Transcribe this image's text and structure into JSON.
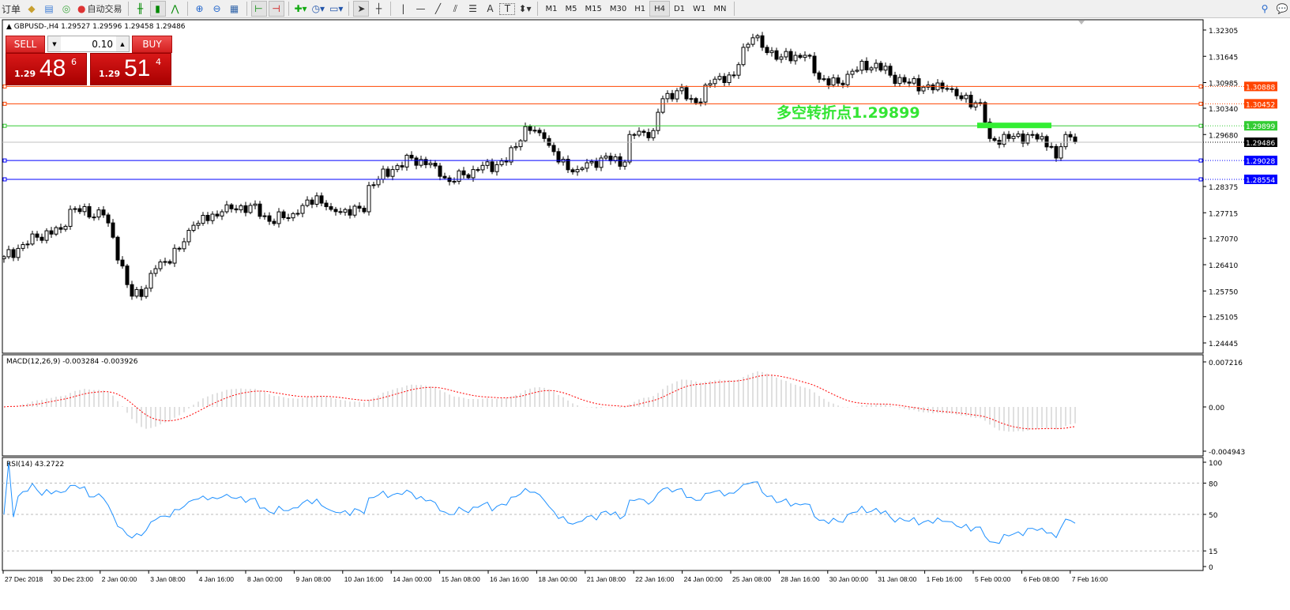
{
  "toolbar": {
    "left_label": "订单",
    "auto_trade": "自动交易",
    "icons": [
      "gold-bars-icon",
      "data-window-icon",
      "signal-icon",
      "auto-trading-icon",
      "bar-chart-icon",
      "candlestick-icon",
      "line-chart-icon",
      "zoom-in-icon",
      "zoom-out-icon",
      "tile-windows-icon",
      "chart-shift-icon",
      "autoscroll-icon",
      "indicators-icon",
      "periods-icon",
      "templates-icon",
      "cursor-icon",
      "crosshair-icon",
      "vertical-line-icon",
      "horizontal-line-icon",
      "trendline-icon",
      "fibonacci-channel-icon",
      "fibonacci-icon",
      "text-icon",
      "text-label-icon",
      "arrows-icon"
    ],
    "draw_labels": {
      "text": "A",
      "label": "T"
    },
    "timeframes": [
      "M1",
      "M5",
      "M15",
      "M30",
      "H1",
      "H4",
      "D1",
      "W1",
      "MN"
    ],
    "active_timeframe": "H4",
    "right_icons": [
      "search-icon",
      "chat-icon"
    ]
  },
  "chart_header": "GBPUSD-,H4  1.29527 1.29596 1.29458 1.29486",
  "trade_panel": {
    "sell": "SELL",
    "buy": "BUY",
    "lot": "0.10",
    "sell_small": "1.29",
    "sell_big": "48",
    "sell_pip": "6",
    "buy_small": "1.29",
    "buy_big": "51",
    "buy_pip": "4"
  },
  "annotation": "多空转折点1.29899",
  "colors": {
    "resistance": "#ff4500",
    "pivot": "#33cc33",
    "support": "#0000ff",
    "bid": "#c0c0c0",
    "annotation": "#33e533",
    "macd_signal": "#ff0000",
    "rsi": "#1e90ff"
  },
  "chart_data": {
    "type": "candlestick",
    "symbol": "GBPUSD-",
    "timeframe": "H4",
    "price_axis_ticks": [
      "1.32305",
      "1.31645",
      "1.30985",
      "1.30340",
      "1.29680",
      "1.28375",
      "1.27715",
      "1.27070",
      "1.26410",
      "1.25750",
      "1.25105",
      "1.24445"
    ],
    "ylim": [
      1.24445,
      1.32305
    ],
    "close_keypoints": [
      [
        0,
        1.2661
      ],
      [
        7,
        1.271
      ],
      [
        12,
        1.273
      ],
      [
        14,
        1.278
      ],
      [
        21,
        1.2766
      ],
      [
        23,
        1.271
      ],
      [
        26,
        1.2591
      ],
      [
        27,
        1.2562
      ],
      [
        30,
        1.2582
      ],
      [
        32,
        1.2631
      ],
      [
        37,
        1.2681
      ],
      [
        40,
        1.274
      ],
      [
        46,
        1.2774
      ],
      [
        52,
        1.279
      ],
      [
        56,
        1.275
      ],
      [
        62,
        1.277
      ],
      [
        66,
        1.2814
      ],
      [
        69,
        1.278
      ],
      [
        76,
        1.2774
      ],
      [
        77,
        1.284
      ],
      [
        82,
        1.288
      ],
      [
        86,
        1.2909
      ],
      [
        91,
        1.2889
      ],
      [
        94,
        1.285
      ],
      [
        99,
        1.288
      ],
      [
        106,
        1.2899
      ],
      [
        110,
        1.2988
      ],
      [
        114,
        1.2958
      ],
      [
        117,
        1.2899
      ],
      [
        121,
        1.288
      ],
      [
        126,
        1.2909
      ],
      [
        131,
        1.2899
      ],
      [
        132,
        1.2968
      ],
      [
        137,
        1.2978
      ],
      [
        139,
        1.3058
      ],
      [
        142,
        1.3078
      ],
      [
        146,
        1.3048
      ],
      [
        150,
        1.3107
      ],
      [
        154,
        1.3117
      ],
      [
        156,
        1.3187
      ],
      [
        158,
        1.3211
      ],
      [
        160,
        1.3187
      ],
      [
        164,
        1.3163
      ],
      [
        169,
        1.3167
      ],
      [
        172,
        1.3107
      ],
      [
        176,
        1.3097
      ],
      [
        179,
        1.3127
      ],
      [
        184,
        1.3147
      ],
      [
        187,
        1.3117
      ],
      [
        191,
        1.3097
      ],
      [
        194,
        1.3087
      ],
      [
        199,
        1.3083
      ],
      [
        202,
        1.3058
      ],
      [
        206,
        1.3048
      ],
      [
        208,
        1.2958
      ],
      [
        212,
        1.2958
      ],
      [
        217,
        1.2968
      ],
      [
        221,
        1.2938
      ],
      [
        222,
        1.2909
      ],
      [
        224,
        1.2968
      ],
      [
        226,
        1.29486
      ]
    ],
    "horizontal_lines": [
      {
        "value": "1.30888",
        "color": "#ff4500"
      },
      {
        "value": "1.30452",
        "color": "#ff4500"
      },
      {
        "value": "1.29899",
        "color": "#33cc33"
      },
      {
        "value": "1.29486",
        "color": "#000000",
        "bid": true
      },
      {
        "value": "1.29028",
        "color": "#0000ff"
      },
      {
        "value": "1.28554",
        "color": "#0000ff"
      }
    ],
    "time_labels": [
      "27 Dec 2018",
      "30 Dec 23:00",
      "2 Jan 00:00",
      "3 Jan 08:00",
      "4 Jan 16:00",
      "8 Jan 00:00",
      "9 Jan 08:00",
      "10 Jan 16:00",
      "14 Jan 00:00",
      "15 Jan 08:00",
      "16 Jan 16:00",
      "18 Jan 00:00",
      "21 Jan 08:00",
      "22 Jan 16:00",
      "24 Jan 00:00",
      "25 Jan 08:00",
      "28 Jan 16:00",
      "30 Jan 00:00",
      "31 Jan 08:00",
      "1 Feb 16:00",
      "5 Feb 00:00",
      "6 Feb 08:00",
      "7 Feb 16:00"
    ],
    "macd": {
      "label": "MACD(12,26,9) -0.003284 -0.003926",
      "ticks": [
        "0.007216",
        "0.00",
        "-0.004943"
      ],
      "ylim": [
        -0.004943,
        0.007216
      ]
    },
    "rsi": {
      "label": "RSI(14) 43.2722",
      "ticks": [
        "100",
        "80",
        "50",
        "15",
        "0"
      ],
      "levels": [
        80,
        50,
        15
      ]
    }
  }
}
